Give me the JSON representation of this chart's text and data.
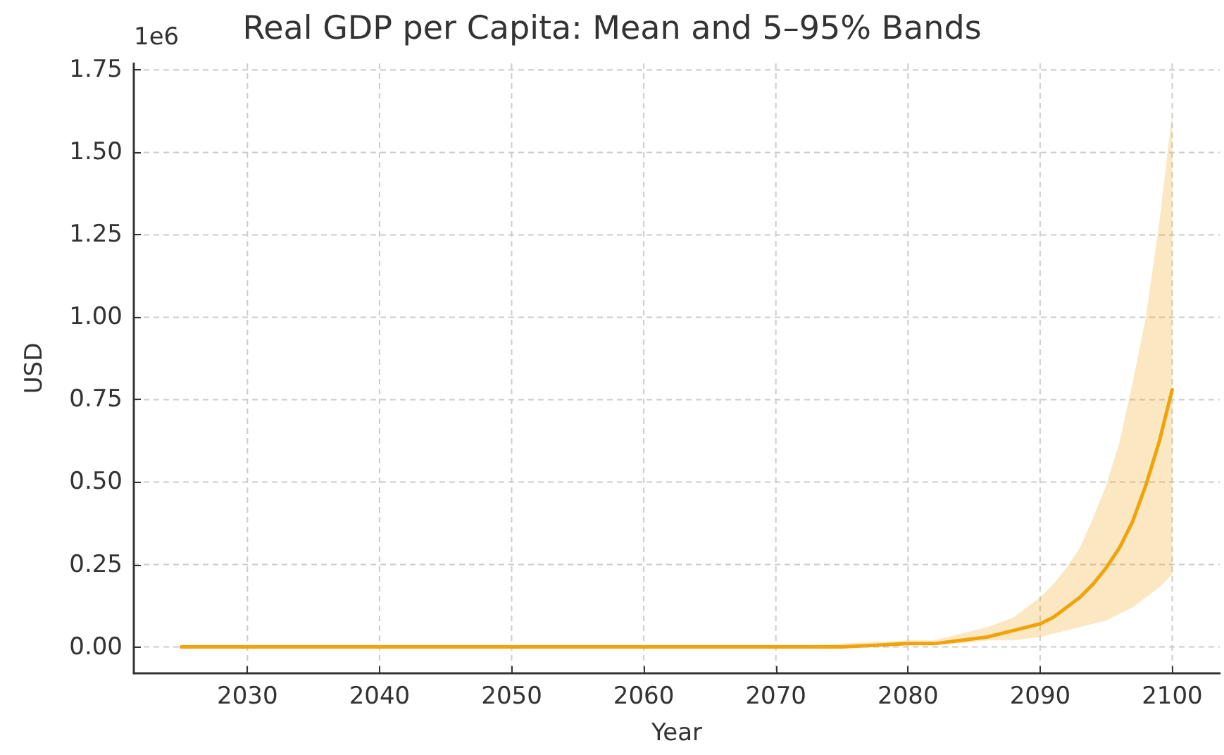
{
  "chart_data": {
    "type": "line",
    "title": "Real GDP per Capita: Mean and 5–95% Bands",
    "xlabel": "Year",
    "ylabel": "USD",
    "annotations": [
      "1e6"
    ],
    "xlim": [
      2021.4,
      2103.6
    ],
    "xticks": [
      2030,
      2040,
      2050,
      2060,
      2070,
      2080,
      2090,
      2100
    ],
    "ylim": [
      -0.08,
      1.77
    ],
    "yticks": [
      {
        "value": 0,
        "label": "0.00"
      },
      0.25,
      {
        "value": 0.5,
        "label": "0.50"
      },
      0.75,
      {
        "value": 1,
        "label": "1.00"
      },
      1.25,
      {
        "value": 1.5,
        "label": "1.50"
      },
      1.75
    ],
    "grid": true,
    "marker": "none",
    "line_style": "solid",
    "series": [
      {
        "color": "#f0a30a",
        "x": [
          2025,
          2030,
          2040,
          2050,
          2060,
          2070,
          2075,
          2080,
          2082,
          2084,
          2086,
          2088,
          2090,
          2091,
          2092,
          2093,
          2094,
          2095,
          2096,
          2097,
          2098,
          2099,
          2100
        ],
        "values": [
          0,
          0,
          0,
          0,
          0,
          0,
          0,
          0.01,
          0.01,
          0.02,
          0.03,
          0.05,
          0.07,
          0.09,
          0.12,
          0.15,
          0.19,
          0.24,
          0.3,
          0.38,
          0.49,
          0.62,
          0.78
        ],
        "lower": [
          0,
          0,
          0,
          0,
          0,
          0,
          0,
          0.01,
          0.01,
          0.01,
          0.02,
          0.02,
          0.03,
          0.04,
          0.05,
          0.06,
          0.07,
          0.08,
          0.1,
          0.12,
          0.15,
          0.18,
          0.22
        ],
        "upper": [
          0,
          0,
          0,
          0,
          0,
          0,
          0.01,
          0.02,
          0.02,
          0.04,
          0.06,
          0.09,
          0.15,
          0.19,
          0.24,
          0.3,
          0.39,
          0.49,
          0.62,
          0.8,
          1,
          1.28,
          1.62
        ]
      }
    ]
  }
}
